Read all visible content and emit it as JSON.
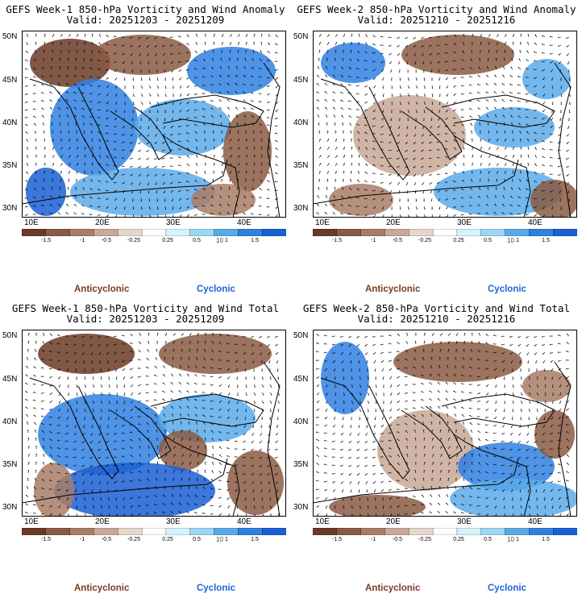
{
  "panels": [
    {
      "title_line1": "GEFS Week-1 850-hPa Vorticity and Wind Anomaly",
      "title_line2": "Valid: 20251203 - 20251209"
    },
    {
      "title_line1": "GEFS Week-2 850-hPa Vorticity and Wind Anomaly",
      "title_line2": "Valid: 20251210 - 20251216"
    },
    {
      "title_line1": "GEFS Week-1 850-hPa Vorticity and Wind Total",
      "title_line2": "Valid: 20251203 - 20251209"
    },
    {
      "title_line1": "GEFS Week-2 850-hPa Vorticity and Wind Total",
      "title_line2": "Valid: 20251210 - 20251216"
    }
  ],
  "lat_labels": [
    "50N",
    "45N",
    "40N",
    "35N",
    "30N"
  ],
  "lon_labels": [
    "10E",
    "20E",
    "30E",
    "40E"
  ],
  "colorbar_ticks": [
    "-1.5",
    "-1",
    "-0.5",
    "-0.25",
    "0.25",
    "0.5",
    "1",
    "1.5"
  ],
  "colorbar_scale": "10",
  "colorbar_colors": [
    "#6b3a26",
    "#8a5a43",
    "#a87d66",
    "#c8a896",
    "#e7d6cc",
    "#ffffff",
    "#d6f3fb",
    "#9ad7f5",
    "#5aaaea",
    "#2f80e0",
    "#1a5fd4"
  ],
  "legend_left": "Anticyclonic",
  "legend_right": "Cyclonic"
}
